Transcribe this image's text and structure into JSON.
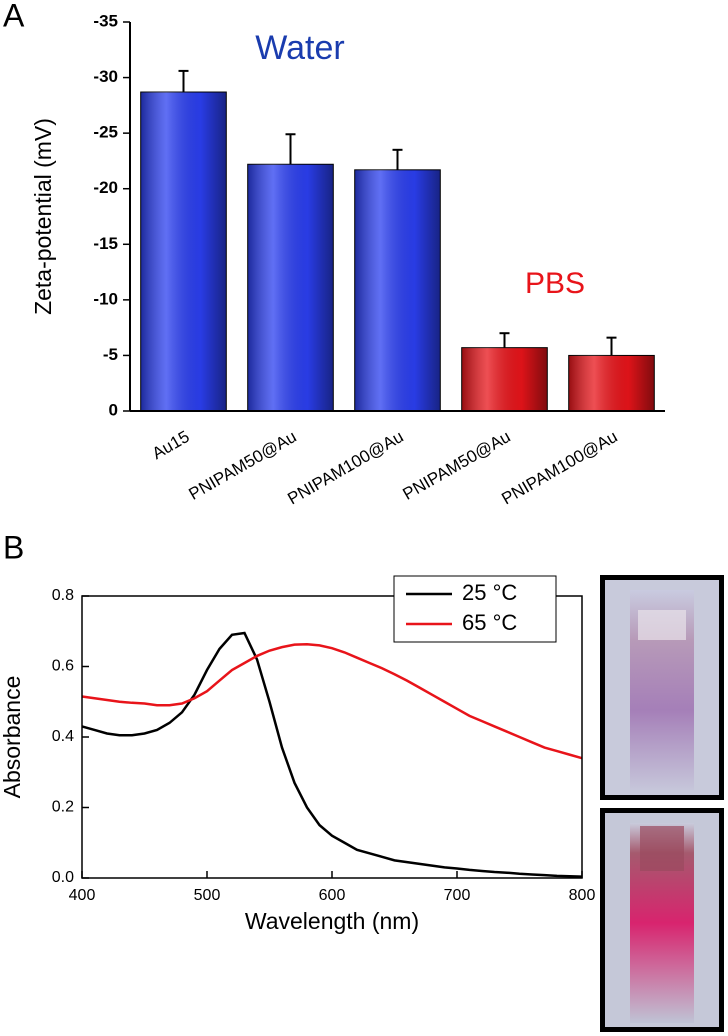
{
  "chart_data": [
    {
      "type": "bar",
      "panel_label": "A",
      "ylabel": "Zeta-potential (mV)",
      "categories": [
        "Au15",
        "PNIPAM50@Au",
        "PNIPAM100@Au",
        "PNIPAM50@Au",
        "PNIPAM100@Au"
      ],
      "values": [
        -28.7,
        -22.2,
        -21.7,
        -5.7,
        -5.0
      ],
      "errors": [
        1.9,
        2.7,
        1.8,
        1.3,
        1.6
      ],
      "colors": [
        "#2b3ff0",
        "#2b3ff0",
        "#2b3ff0",
        "#e8141a",
        "#e8141a"
      ],
      "annotations": [
        {
          "text": "Water",
          "color": "#1a3cae"
        },
        {
          "text": "PBS",
          "color": "#e8141a"
        }
      ],
      "ylim": [
        0,
        -35
      ],
      "yticks": [
        0,
        -5,
        -10,
        -15,
        -20,
        -25,
        -30,
        -35
      ]
    },
    {
      "type": "line",
      "panel_label": "B",
      "xlabel": "Wavelength (nm)",
      "ylabel": "Absorbance",
      "x": [
        400,
        410,
        420,
        430,
        440,
        450,
        460,
        470,
        480,
        490,
        500,
        510,
        520,
        530,
        540,
        550,
        560,
        570,
        580,
        590,
        600,
        610,
        620,
        630,
        640,
        650,
        660,
        670,
        680,
        690,
        700,
        710,
        720,
        730,
        740,
        750,
        760,
        770,
        780,
        790,
        800
      ],
      "series": [
        {
          "name": "25 °C",
          "color": "#000000",
          "values": [
            0.43,
            0.42,
            0.41,
            0.405,
            0.405,
            0.41,
            0.42,
            0.44,
            0.47,
            0.52,
            0.59,
            0.65,
            0.69,
            0.695,
            0.62,
            0.5,
            0.37,
            0.27,
            0.2,
            0.15,
            0.12,
            0.1,
            0.08,
            0.07,
            0.06,
            0.05,
            0.045,
            0.04,
            0.035,
            0.03,
            0.027,
            0.023,
            0.02,
            0.017,
            0.015,
            0.012,
            0.01,
            0.008,
            0.006,
            0.005,
            0.004
          ]
        },
        {
          "name": "65 °C",
          "color": "#e8141a",
          "values": [
            0.515,
            0.51,
            0.505,
            0.5,
            0.497,
            0.495,
            0.49,
            0.49,
            0.495,
            0.51,
            0.53,
            0.56,
            0.59,
            0.61,
            0.63,
            0.645,
            0.655,
            0.662,
            0.663,
            0.66,
            0.652,
            0.64,
            0.625,
            0.61,
            0.595,
            0.578,
            0.56,
            0.54,
            0.52,
            0.5,
            0.48,
            0.46,
            0.445,
            0.43,
            0.415,
            0.4,
            0.385,
            0.37,
            0.36,
            0.35,
            0.34
          ]
        }
      ],
      "xlim": [
        400,
        800
      ],
      "xticks": [
        400,
        500,
        600,
        700,
        800
      ],
      "ylim": [
        0,
        0.8
      ],
      "yticks": [
        {
          "value": 0,
          "label": "0.0"
        },
        0.2,
        0.4,
        0.6,
        0.8
      ],
      "legend": "upper right"
    }
  ]
}
